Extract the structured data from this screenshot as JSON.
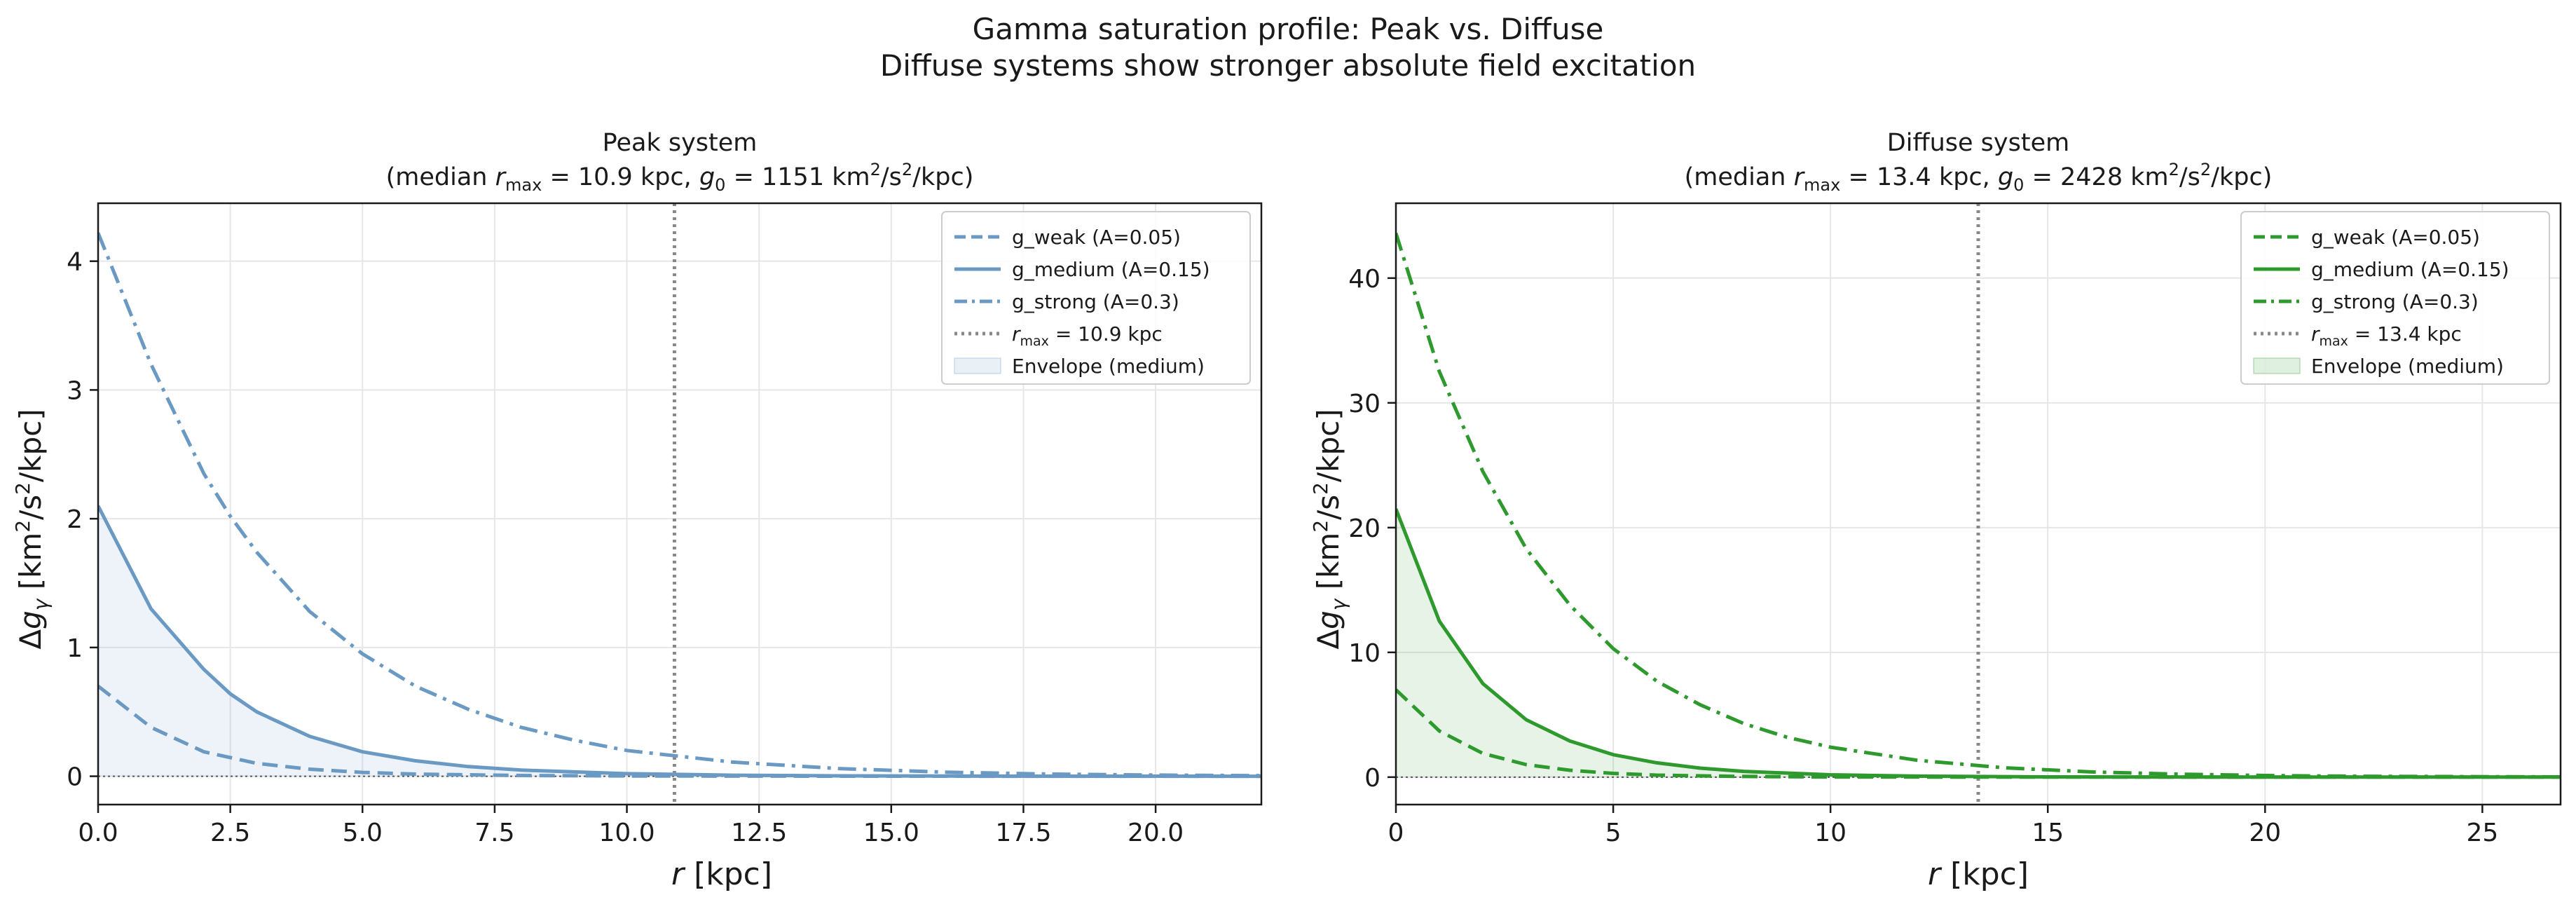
{
  "figure": {
    "title_line1": "Gamma saturation profile: Peak vs. Diffuse",
    "title_line2": "Diffuse systems show stronger absolute field excitation"
  },
  "chart_data": [
    {
      "type": "line",
      "title_line1": "Peak system",
      "title_line2": {
        "pre": "(median ",
        "rmax_sym": "r",
        "rmax_sub": "max",
        "rmax_val": " = 10.9 kpc, ",
        "g0_sym": "g",
        "g0_sub": "0",
        "g0_val": " = 1151 km",
        "sup2a": "2",
        "slash_s": "/s",
        "sup2b": "2",
        "post": "/kpc)"
      },
      "xlabel": {
        "sym": "r",
        "unit": " [kpc]"
      },
      "ylabel": {
        "delta": "Δ",
        "sym": "g",
        "sub": "γ",
        "u1": " [km",
        "sup1": "2",
        "u2": "/s",
        "sup2": "2",
        "u3": "/kpc]"
      },
      "xlim": [
        0,
        22
      ],
      "ylim": [
        -0.22,
        4.45
      ],
      "xticks": [
        0,
        2.5,
        5,
        7.5,
        10,
        12.5,
        15,
        17.5,
        20
      ],
      "xtick_labels": [
        "0.0",
        "2.5",
        "5.0",
        "7.5",
        "10.0",
        "12.5",
        "15.0",
        "17.5",
        "20.0"
      ],
      "yticks": [
        0,
        1,
        2,
        3,
        4
      ],
      "ytick_labels": [
        "0",
        "1",
        "2",
        "3",
        "4"
      ],
      "grid": true,
      "legend_position": "top-right",
      "color": "#6a9ac4",
      "fill_color": "#6a9ac4",
      "r_max": 10.9,
      "r_max_label": {
        "sym": "r",
        "sub": "max",
        "val": " = 10.9 kpc"
      },
      "envelope_label": "Envelope (medium)",
      "series": [
        {
          "name": "g_weak (A=0.05)",
          "style": "dashed",
          "x": [
            0,
            1,
            2,
            3,
            4,
            5,
            6,
            8,
            10,
            14,
            18,
            22
          ],
          "y": [
            0.7,
            0.38,
            0.19,
            0.1,
            0.055,
            0.03,
            0.017,
            0.006,
            0.002,
            0.0003,
            5e-05,
            0.0
          ]
        },
        {
          "name": "g_medium (A=0.15)",
          "style": "solid",
          "x": [
            0,
            1,
            2,
            2.5,
            3,
            4,
            5,
            6,
            7,
            8,
            10,
            12,
            14,
            16,
            18,
            22
          ],
          "y": [
            2.1,
            1.3,
            0.83,
            0.64,
            0.5,
            0.31,
            0.19,
            0.12,
            0.075,
            0.048,
            0.02,
            0.008,
            0.003,
            0.0013,
            0.0005,
            0.0
          ]
        },
        {
          "name": "g_strong (A=0.3)",
          "style": "dashdot",
          "x": [
            0,
            1,
            2,
            2.5,
            3,
            4,
            5,
            6,
            7,
            8,
            9,
            10,
            12,
            14,
            16,
            18,
            20,
            22
          ],
          "y": [
            4.22,
            3.2,
            2.35,
            2.02,
            1.74,
            1.28,
            0.95,
            0.7,
            0.52,
            0.38,
            0.28,
            0.2,
            0.11,
            0.06,
            0.032,
            0.017,
            0.009,
            0.005
          ]
        }
      ]
    },
    {
      "type": "line",
      "title_line1": "Diffuse system",
      "title_line2": {
        "pre": "(median ",
        "rmax_sym": "r",
        "rmax_sub": "max",
        "rmax_val": " = 13.4 kpc, ",
        "g0_sym": "g",
        "g0_sub": "0",
        "g0_val": " = 2428 km",
        "sup2a": "2",
        "slash_s": "/s",
        "sup2b": "2",
        "post": "/kpc)"
      },
      "xlabel": {
        "sym": "r",
        "unit": " [kpc]"
      },
      "ylabel": {
        "delta": "Δ",
        "sym": "g",
        "sub": "γ",
        "u1": " [km",
        "sup1": "2",
        "u2": "/s",
        "sup2": "2",
        "u3": "/kpc]"
      },
      "xlim": [
        0,
        26.8
      ],
      "ylim": [
        -2.2,
        46
      ],
      "xticks": [
        0,
        5,
        10,
        15,
        20,
        25
      ],
      "xtick_labels": [
        "0",
        "5",
        "10",
        "15",
        "20",
        "25"
      ],
      "yticks": [
        0,
        10,
        20,
        30,
        40
      ],
      "ytick_labels": [
        "0",
        "10",
        "20",
        "30",
        "40"
      ],
      "grid": true,
      "legend_position": "top-right",
      "color": "#2e9a2e",
      "fill_color": "#2e9a2e",
      "r_max": 13.4,
      "r_max_label": {
        "sym": "r",
        "sub": "max",
        "val": " = 13.4 kpc"
      },
      "envelope_label": "Envelope (medium)",
      "series": [
        {
          "name": "g_weak (A=0.05)",
          "style": "dashed",
          "x": [
            0,
            1,
            2,
            3,
            4,
            5,
            6,
            8,
            10,
            15,
            20,
            26.8
          ],
          "y": [
            7.0,
            3.7,
            1.9,
            1.0,
            0.55,
            0.3,
            0.16,
            0.05,
            0.015,
            0.001,
            0.0001,
            0.0
          ]
        },
        {
          "name": "g_medium (A=0.15)",
          "style": "solid",
          "x": [
            0,
            1,
            2,
            3,
            4,
            5,
            6,
            7,
            8,
            10,
            12,
            15,
            20,
            26.8
          ],
          "y": [
            21.5,
            12.5,
            7.5,
            4.6,
            2.9,
            1.8,
            1.15,
            0.72,
            0.46,
            0.19,
            0.08,
            0.02,
            0.003,
            0.0
          ]
        },
        {
          "name": "g_strong (A=0.3)",
          "style": "dashdot",
          "x": [
            0,
            1,
            2,
            3,
            4,
            5,
            6,
            7,
            8,
            9,
            10,
            12,
            14,
            16,
            18,
            20,
            22,
            26.8
          ],
          "y": [
            43.6,
            32.5,
            24.5,
            18.3,
            13.8,
            10.3,
            7.7,
            5.8,
            4.3,
            3.2,
            2.4,
            1.35,
            0.75,
            0.42,
            0.24,
            0.13,
            0.07,
            0.02
          ]
        }
      ]
    }
  ]
}
